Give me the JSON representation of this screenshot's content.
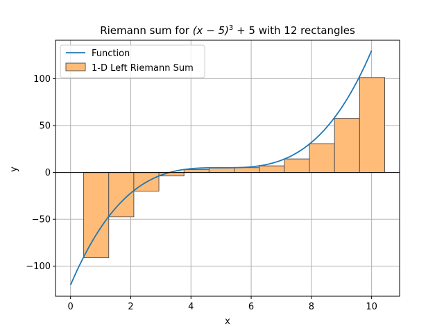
{
  "chart_data": {
    "type": "line+bar",
    "title_prefix": "Riemann sum for ",
    "title_math": "(x − 5)",
    "title_exp": "3",
    "title_suffix": " + 5 with 12 rectangles",
    "xlabel": "x",
    "ylabel": "y",
    "xlim": [
      -0.5,
      10.93
    ],
    "ylim": [
      -132,
      141
    ],
    "xticks": [
      0,
      2,
      4,
      6,
      8,
      10
    ],
    "yticks": [
      -100,
      -50,
      0,
      50,
      100
    ],
    "ytick_labels": [
      "−100",
      "−50",
      "0",
      "50",
      "100"
    ],
    "grid": true,
    "legend_position": "top-left",
    "function": {
      "name": "Function",
      "expression": "(x-5)^3+5",
      "x_range": [
        0,
        10
      ],
      "color": "#1f77b4"
    },
    "bars": {
      "name": "1-D Left Riemann Sum",
      "fill": "#ffbb78",
      "edge": "#555555",
      "x_left": [
        0.4348,
        1.2681,
        2.1014,
        2.9348,
        3.7681,
        4.6014,
        5.4348,
        6.2681,
        7.1014,
        7.9348,
        8.7681,
        9.6014
      ],
      "x_right": [
        1.2681,
        2.1014,
        2.9348,
        3.7681,
        4.6014,
        5.4348,
        6.2681,
        7.1014,
        7.9348,
        8.7681,
        9.6014,
        10.4348
      ],
      "values": [
        -91.0,
        -47.4,
        -19.9,
        -3.7,
        3.1,
        4.9,
        5.1,
        7.0,
        14.4,
        30.7,
        57.7,
        101.2
      ]
    }
  }
}
